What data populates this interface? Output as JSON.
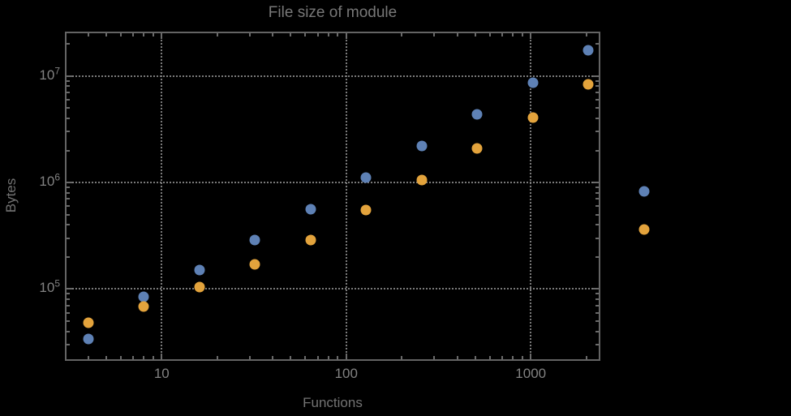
{
  "window": {
    "background": "#000000"
  },
  "chart_data": {
    "type": "scatter",
    "title": "File size of module",
    "xlabel": "Functions",
    "ylabel": "Bytes",
    "x_scale": "log",
    "y_scale": "log",
    "grid": "dotted at major ticks",
    "legend": "none",
    "framed": true,
    "xlim": [
      3.05,
      2335
    ],
    "ylim": [
      21900,
      25200000
    ],
    "x_ticks": [
      {
        "value": 10,
        "label": "10"
      },
      {
        "value": 100,
        "label": "100"
      },
      {
        "value": 1000,
        "label": "1000"
      }
    ],
    "y_ticks": [
      {
        "value": 100000,
        "mantissa": "10",
        "exponent": "5"
      },
      {
        "value": 1000000,
        "mantissa": "10",
        "exponent": "6"
      },
      {
        "value": 10000000,
        "mantissa": "10",
        "exponent": "7"
      }
    ],
    "x": [
      4,
      8,
      16,
      32,
      64,
      128,
      256,
      512,
      1024,
      2048,
      4096
    ],
    "series": [
      {
        "name": "blue",
        "color": "#5E81B5",
        "values": [
          34000,
          85000,
          150000,
          290000,
          560000,
          1120000,
          2200000,
          4400000,
          8700000,
          17500000,
          830000
        ]
      },
      {
        "name": "orange",
        "color": "#E3A33C",
        "values": [
          48000,
          69000,
          105000,
          170000,
          290000,
          550000,
          1050000,
          2100000,
          4100000,
          8300000,
          365000
        ]
      }
    ]
  },
  "style_colors": {
    "background": "#000000",
    "frame": "#646464",
    "grid": "#7a7a7a",
    "tick": "#6a6a6a",
    "title_text": "#787878",
    "axis_label_text": "#737373",
    "tick_label_text": "#828282"
  }
}
